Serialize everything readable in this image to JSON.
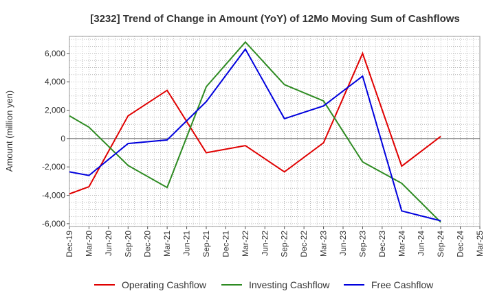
{
  "chart_data": {
    "type": "line",
    "title": "[3232]  Trend of Change in Amount (YoY) of 12Mo Moving Sum of Cashflows",
    "ylabel": "Amount (million yen)",
    "xlabel": "",
    "ylim": [
      -6200,
      7200
    ],
    "yticks": [
      6000,
      4000,
      2000,
      0,
      -2000,
      -4000,
      -6000
    ],
    "ytick_labels": [
      "6,000",
      "4,000",
      "2,000",
      "0",
      "-2,000",
      "-4,000",
      "-6,000"
    ],
    "categories": [
      "Dec-19",
      "Mar-20",
      "Jun-20",
      "Sep-20",
      "Dec-20",
      "Mar-21",
      "Jun-21",
      "Sep-21",
      "Dec-21",
      "Mar-22",
      "Jun-22",
      "Sep-22",
      "Dec-22",
      "Mar-23",
      "Jun-23",
      "Sep-23",
      "Dec-23",
      "Mar-24",
      "Jun-24",
      "Sep-24",
      "Dec-24",
      "Mar-25"
    ],
    "series": [
      {
        "name": "Operating Cashflow",
        "color": "#e00000",
        "values": [
          -3900,
          -3400,
          null,
          1600,
          null,
          3400,
          null,
          -1000,
          null,
          -500,
          null,
          -2350,
          null,
          -300,
          null,
          6000,
          null,
          -1950,
          null,
          150,
          null,
          null
        ]
      },
      {
        "name": "Investing Cashflow",
        "color": "#2e8b22",
        "values": [
          1600,
          800,
          null,
          -1900,
          null,
          -3450,
          null,
          3650,
          null,
          6800,
          null,
          3800,
          null,
          2650,
          null,
          -1650,
          null,
          -3150,
          null,
          -5900,
          null,
          null
        ]
      },
      {
        "name": "Free Cashflow",
        "color": "#0000dd",
        "values": [
          -2350,
          -2600,
          null,
          -350,
          null,
          -100,
          null,
          2600,
          null,
          6300,
          null,
          1400,
          null,
          2300,
          null,
          4400,
          null,
          -5100,
          null,
          -5800,
          null,
          null
        ]
      }
    ],
    "grid": true,
    "legend_position": "bottom"
  }
}
